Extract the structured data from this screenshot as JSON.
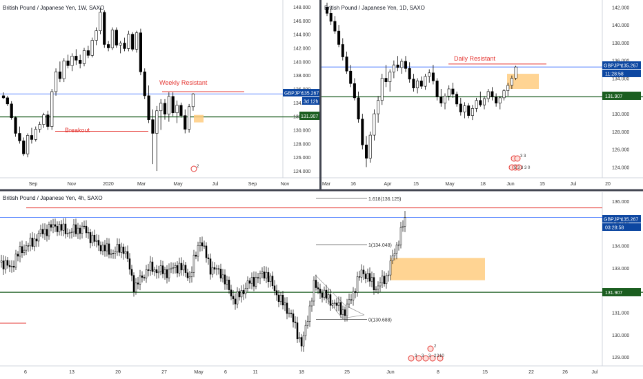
{
  "colors": {
    "up": "#ffffff",
    "down": "#000000",
    "wick": "#000000",
    "resistance": "#e53935",
    "support": "#1b5e20",
    "price_line": "#2962ff",
    "price_badge": "#0d47a1",
    "support_badge": "#1b5e20",
    "zone": "#ffcc80",
    "grid_sep": "#434651",
    "axis_text": "#333333",
    "title_text": "#131722"
  },
  "panels": {
    "weekly": {
      "title": "British Pound / Japanese Yen, 1W, SAXO",
      "y_ticks": [
        "148.000",
        "146.000",
        "144.000",
        "142.000",
        "140.000",
        "138.000",
        "136.000",
        "134.000",
        "132.000",
        "130.000",
        "128.000",
        "126.000",
        "124.000"
      ],
      "x_ticks": [
        "Sep",
        "Nov",
        "2020",
        "Mar",
        "May",
        "Jul",
        "Sep",
        "Nov"
      ],
      "price_badge": "GBPJPY",
      "price_value": "135.267",
      "countdown": "3d 12h",
      "support_value": "131.907",
      "label_resistant": "Weekly Resistant",
      "label_breakout": "Breakout",
      "event_badge": "2"
    },
    "daily": {
      "title": "British Pound / Japanese Yen, 1D, SAXO",
      "y_ticks": [
        "142.000",
        "140.000",
        "138.000",
        "136.000",
        "134.000",
        "132.000",
        "130.000",
        "128.000",
        "126.000",
        "124.000"
      ],
      "x_ticks": [
        "Mar",
        "16",
        "Apr",
        "15",
        "May",
        "18",
        "Jun",
        "15",
        "Jul",
        "20"
      ],
      "price_badge": "GBPJPY",
      "price_value": "135.267",
      "countdown": "11:28:58",
      "support_value": "131.907",
      "label_resistant": "Daily Resistant",
      "event_badges": [
        "3",
        "3",
        "5",
        "3",
        "3",
        "3",
        "0"
      ]
    },
    "h4": {
      "title": "British Pound / Japanese Yen, 4h, SAXO",
      "y_ticks": [
        "136.000",
        "135.000",
        "134.000",
        "133.000",
        "132.000",
        "131.000",
        "130.000",
        "129.000"
      ],
      "x_ticks": [
        "6",
        "13",
        "20",
        "27",
        "May",
        "6",
        "11",
        "18",
        "25",
        "Jun",
        "8",
        "15",
        "22",
        "26",
        "Jul"
      ],
      "price_badge": "GBPJPY",
      "price_value": "135.267",
      "countdown": "03:28:58",
      "support_value": "131.907",
      "fib_1618": "1.618(136.125)",
      "fib_1": "1(134.048)",
      "fib_0": "0(130.688)",
      "event_badges": [
        "3",
        "3",
        "3",
        "2",
        "2",
        "10",
        "2"
      ]
    }
  },
  "chart_data": [
    {
      "type": "candlestick",
      "title": "British Pound / Japanese Yen, 1W, SAXO",
      "ylim": [
        123,
        149
      ],
      "levels": {
        "weekly_resistant": 135.6,
        "breakout_support": 129.8,
        "support": 131.907,
        "last_price": 135.267
      },
      "zone": {
        "top": 132.2,
        "bottom": 131.1
      },
      "candles": [
        [
          135.0,
          135.5,
          134.5,
          134.7
        ],
        [
          134.7,
          135.0,
          133.5,
          133.8
        ],
        [
          133.8,
          134.2,
          131.5,
          131.8
        ],
        [
          131.8,
          132.0,
          129.0,
          129.5
        ],
        [
          129.5,
          130.5,
          128.0,
          128.4
        ],
        [
          128.4,
          128.9,
          126.2,
          126.5
        ],
        [
          126.5,
          129.5,
          126.0,
          129.2
        ],
        [
          129.2,
          130.3,
          128.0,
          128.6
        ],
        [
          128.6,
          130.5,
          128.3,
          130.1
        ],
        [
          130.1,
          131.2,
          129.6,
          130.8
        ],
        [
          130.8,
          132.5,
          130.3,
          132.2
        ],
        [
          132.2,
          132.8,
          130.0,
          130.5
        ],
        [
          130.5,
          136.0,
          130.0,
          135.6
        ],
        [
          135.6,
          139.0,
          135.0,
          138.5
        ],
        [
          138.5,
          140.0,
          137.0,
          137.5
        ],
        [
          137.5,
          140.5,
          137.0,
          140.1
        ],
        [
          140.1,
          141.0,
          139.0,
          139.4
        ],
        [
          139.4,
          141.2,
          138.6,
          140.8
        ],
        [
          140.8,
          141.8,
          139.5,
          140.2
        ],
        [
          140.2,
          141.0,
          139.0,
          139.7
        ],
        [
          139.7,
          142.0,
          139.3,
          141.6
        ],
        [
          141.6,
          142.3,
          140.5,
          140.9
        ],
        [
          140.9,
          143.5,
          140.6,
          143.1
        ],
        [
          143.1,
          145.0,
          142.4,
          144.5
        ],
        [
          144.5,
          147.8,
          144.0,
          147.2
        ],
        [
          147.2,
          147.5,
          142.0,
          142.5
        ],
        [
          142.5,
          143.0,
          141.5,
          142.0
        ],
        [
          142.0,
          145.0,
          141.7,
          144.6
        ],
        [
          144.6,
          145.0,
          142.0,
          142.4
        ],
        [
          142.4,
          143.0,
          141.2,
          142.7
        ],
        [
          142.7,
          143.5,
          141.5,
          141.9
        ],
        [
          141.9,
          144.5,
          141.5,
          144.0
        ],
        [
          144.0,
          144.3,
          141.5,
          141.8
        ],
        [
          141.8,
          144.5,
          141.3,
          144.2
        ],
        [
          144.2,
          144.8,
          138.0,
          138.5
        ],
        [
          138.5,
          139.0,
          134.5,
          135.0
        ],
        [
          135.0,
          136.5,
          131.0,
          131.5
        ],
        [
          131.5,
          133.0,
          125.0,
          129.5
        ],
        [
          129.5,
          133.5,
          124.0,
          132.8
        ],
        [
          132.8,
          134.5,
          130.0,
          133.9
        ],
        [
          133.9,
          134.5,
          131.5,
          132.3
        ],
        [
          132.3,
          135.5,
          131.2,
          134.9
        ],
        [
          134.9,
          135.5,
          132.0,
          132.5
        ],
        [
          132.5,
          134.3,
          131.0,
          133.6
        ],
        [
          133.6,
          134.0,
          131.8,
          132.1
        ],
        [
          132.1,
          133.0,
          129.5,
          130.1
        ],
        [
          130.1,
          133.8,
          129.6,
          133.4
        ],
        [
          133.4,
          135.4,
          132.8,
          135.267
        ]
      ]
    },
    {
      "type": "candlestick",
      "title": "British Pound / Japanese Yen, 1D, SAXO",
      "ylim": [
        122.8,
        142.8
      ],
      "levels": {
        "daily_resistant": 135.6,
        "support": 131.907,
        "last_price": 135.267
      },
      "zone": {
        "top": 134.5,
        "bottom": 132.8
      },
      "candles": [
        [
          142.0,
          142.5,
          141.0,
          141.3
        ],
        [
          141.3,
          141.8,
          140.0,
          140.4
        ],
        [
          140.4,
          141.0,
          139.0,
          139.3
        ],
        [
          139.3,
          140.0,
          137.5,
          137.8
        ],
        [
          137.8,
          138.5,
          136.0,
          136.4
        ],
        [
          136.4,
          137.0,
          134.5,
          134.8
        ],
        [
          134.8,
          135.5,
          133.0,
          133.4
        ],
        [
          133.4,
          134.0,
          131.5,
          131.8
        ],
        [
          131.8,
          132.5,
          129.0,
          129.4
        ],
        [
          129.4,
          130.0,
          126.0,
          126.5
        ],
        [
          126.5,
          127.5,
          124.0,
          125.0
        ],
        [
          125.0,
          128.0,
          124.5,
          127.6
        ],
        [
          127.6,
          130.5,
          127.0,
          130.0
        ],
        [
          130.0,
          132.0,
          129.0,
          131.5
        ],
        [
          131.5,
          134.5,
          131.0,
          134.0
        ],
        [
          134.0,
          135.5,
          133.0,
          133.6
        ],
        [
          133.6,
          135.0,
          132.5,
          134.7
        ],
        [
          134.7,
          136.0,
          134.0,
          135.5
        ],
        [
          135.5,
          136.5,
          134.8,
          135.2
        ],
        [
          135.2,
          136.2,
          134.5,
          135.9
        ],
        [
          135.9,
          136.5,
          134.7,
          135.1
        ],
        [
          135.1,
          135.8,
          133.5,
          133.9
        ],
        [
          133.9,
          134.5,
          132.5,
          132.9
        ],
        [
          132.9,
          134.0,
          132.3,
          133.7
        ],
        [
          133.7,
          134.2,
          132.8,
          133.1
        ],
        [
          133.1,
          134.5,
          132.7,
          134.2
        ],
        [
          134.2,
          135.0,
          133.5,
          134.6
        ],
        [
          134.6,
          135.5,
          133.3,
          133.7
        ],
        [
          133.7,
          134.0,
          131.5,
          131.9
        ],
        [
          131.9,
          132.8,
          130.8,
          131.2
        ],
        [
          131.2,
          132.3,
          130.5,
          132.0
        ],
        [
          132.0,
          133.2,
          131.5,
          132.8
        ],
        [
          132.8,
          133.5,
          131.8,
          132.2
        ],
        [
          132.2,
          132.5,
          130.8,
          131.1
        ],
        [
          131.1,
          131.8,
          129.8,
          130.2
        ],
        [
          130.2,
          131.3,
          129.5,
          130.9
        ],
        [
          130.9,
          131.2,
          129.5,
          129.8
        ],
        [
          129.8,
          131.0,
          129.3,
          130.6
        ],
        [
          130.6,
          131.8,
          130.2,
          131.5
        ],
        [
          131.5,
          132.5,
          130.8,
          131.0
        ],
        [
          131.0,
          132.0,
          130.5,
          131.7
        ],
        [
          131.7,
          132.8,
          131.3,
          132.5
        ],
        [
          132.5,
          133.0,
          131.5,
          131.9
        ],
        [
          131.9,
          132.3,
          130.8,
          131.2
        ],
        [
          131.2,
          132.0,
          130.5,
          131.8
        ],
        [
          131.8,
          132.8,
          131.5,
          132.6
        ],
        [
          132.6,
          133.5,
          132.0,
          133.2
        ],
        [
          133.2,
          134.3,
          132.8,
          134.0
        ],
        [
          134.0,
          135.4,
          133.8,
          135.267
        ]
      ]
    },
    {
      "type": "candlestick",
      "title": "British Pound / Japanese Yen, 4h, SAXO",
      "ylim": [
        128.6,
        136.4
      ],
      "levels": {
        "resistance": 135.7,
        "support": 131.907,
        "last_price": 135.267,
        "fib_1618": 136.125,
        "fib_1": 134.048,
        "fib_0": 130.688
      },
      "zone": {
        "top": 133.45,
        "bottom": 132.45
      }
    }
  ]
}
